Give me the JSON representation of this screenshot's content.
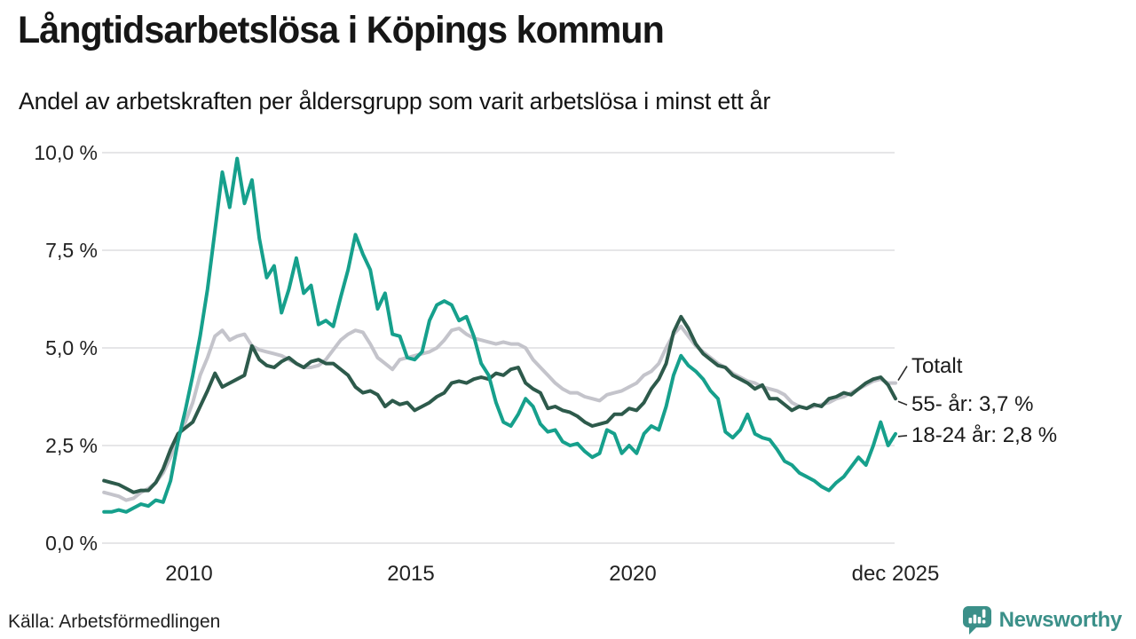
{
  "header": {
    "title": "Långtidsarbetslösa i Köpings kommun",
    "subtitle": "Andel av arbetskraften per åldersgrupp som varit arbetslösa i minst ett år"
  },
  "footer": {
    "source": "Källa: Arbetsförmedlingen",
    "brand": "Newsworthy",
    "brand_color": "#3b9089",
    "brand_icon": "newsworthy-speech-bubble-bar-chart-icon"
  },
  "chart_data": {
    "type": "line",
    "title": "Långtidsarbetslösa i Köpings kommun",
    "subtitle": "Andel av arbetskraften per åldersgrupp som varit arbetslösa i minst ett år",
    "unit": "%",
    "grid": true,
    "legend_position": "right-end-annotations",
    "x_axis": {
      "range_years": [
        2008.08,
        2025.92
      ],
      "ticks": [
        {
          "label": "2010",
          "year": 2010
        },
        {
          "label": "2015",
          "year": 2015
        },
        {
          "label": "2020",
          "year": 2020
        },
        {
          "label": "dec 2025",
          "year": 2025.92
        }
      ]
    },
    "y_axis": {
      "range": [
        0,
        10.3
      ],
      "ticks": [
        {
          "label": "10,0 %",
          "value": 10
        },
        {
          "label": "7,5 %",
          "value": 7.5
        },
        {
          "label": "5,0 %",
          "value": 5
        },
        {
          "label": "2,5 %",
          "value": 2.5
        },
        {
          "label": "0,0 %",
          "value": 0
        }
      ]
    },
    "x_start_year": 2008.083,
    "x_step_years": 0.1667,
    "series": [
      {
        "id": "totalt",
        "name": "Totalt",
        "end_label": "Totalt",
        "end_value": 4.1,
        "color": "#c4c4cb",
        "values": [
          1.3,
          1.25,
          1.2,
          1.1,
          1.15,
          1.3,
          1.4,
          1.55,
          1.8,
          2.2,
          2.7,
          3.1,
          3.6,
          4.3,
          4.75,
          5.3,
          5.45,
          5.2,
          5.3,
          5.35,
          5.05,
          4.95,
          4.9,
          4.85,
          4.8,
          4.7,
          4.6,
          4.5,
          4.5,
          4.55,
          4.7,
          4.95,
          5.2,
          5.35,
          5.45,
          5.4,
          5.1,
          4.75,
          4.6,
          4.45,
          4.7,
          4.75,
          4.8,
          4.85,
          4.9,
          5.0,
          5.2,
          5.45,
          5.5,
          5.35,
          5.25,
          5.2,
          5.15,
          5.1,
          5.15,
          5.1,
          5.1,
          5.0,
          4.7,
          4.5,
          4.3,
          4.1,
          3.95,
          3.85,
          3.85,
          3.75,
          3.7,
          3.65,
          3.8,
          3.85,
          3.9,
          4.0,
          4.1,
          4.3,
          4.4,
          4.6,
          5.0,
          5.35,
          5.55,
          5.3,
          5.05,
          4.9,
          4.75,
          4.6,
          4.5,
          4.35,
          4.25,
          4.15,
          4.1,
          4.0,
          3.95,
          3.9,
          3.8,
          3.6,
          3.5,
          3.45,
          3.5,
          3.55,
          3.6,
          3.7,
          3.75,
          3.85,
          3.95,
          4.05,
          4.15,
          4.2,
          4.1,
          4.1
        ]
      },
      {
        "id": "55-ar",
        "name": "55- år",
        "end_label": "55- år: 3,7 %",
        "end_value": 3.7,
        "color": "#2d5a4b",
        "values": [
          1.6,
          1.55,
          1.5,
          1.4,
          1.3,
          1.35,
          1.35,
          1.55,
          1.9,
          2.4,
          2.8,
          2.95,
          3.1,
          3.5,
          3.9,
          4.35,
          4.0,
          4.1,
          4.2,
          4.3,
          5.05,
          4.7,
          4.55,
          4.5,
          4.65,
          4.75,
          4.6,
          4.5,
          4.65,
          4.7,
          4.6,
          4.6,
          4.45,
          4.3,
          4.0,
          3.85,
          3.9,
          3.8,
          3.5,
          3.65,
          3.55,
          3.6,
          3.4,
          3.5,
          3.6,
          3.75,
          3.85,
          4.1,
          4.15,
          4.1,
          4.2,
          4.25,
          4.2,
          4.35,
          4.3,
          4.45,
          4.5,
          4.1,
          3.95,
          3.85,
          3.45,
          3.5,
          3.4,
          3.35,
          3.25,
          3.1,
          3.0,
          3.05,
          3.1,
          3.3,
          3.3,
          3.45,
          3.4,
          3.6,
          3.95,
          4.2,
          4.6,
          5.4,
          5.8,
          5.5,
          5.1,
          4.85,
          4.7,
          4.55,
          4.5,
          4.3,
          4.2,
          4.1,
          3.95,
          4.05,
          3.7,
          3.7,
          3.55,
          3.4,
          3.5,
          3.45,
          3.55,
          3.5,
          3.7,
          3.75,
          3.85,
          3.8,
          3.95,
          4.1,
          4.2,
          4.25,
          4.05,
          3.7
        ]
      },
      {
        "id": "18-24-ar",
        "name": "18-24 år",
        "end_label": "18-24 år: 2,8 %",
        "end_value": 2.8,
        "color": "#16a08c",
        "values": [
          0.8,
          0.8,
          0.85,
          0.8,
          0.9,
          1.0,
          0.95,
          1.1,
          1.05,
          1.6,
          2.6,
          3.4,
          4.3,
          5.3,
          6.5,
          8.0,
          9.5,
          8.6,
          9.85,
          8.7,
          9.3,
          7.8,
          6.8,
          7.1,
          5.9,
          6.5,
          7.3,
          6.4,
          6.6,
          5.6,
          5.7,
          5.55,
          6.3,
          7.0,
          7.9,
          7.4,
          7.0,
          6.0,
          6.4,
          5.35,
          5.3,
          4.75,
          4.7,
          4.9,
          5.7,
          6.1,
          6.2,
          6.1,
          5.7,
          5.8,
          5.3,
          4.6,
          4.3,
          3.6,
          3.1,
          3.0,
          3.3,
          3.7,
          3.5,
          3.05,
          2.85,
          2.9,
          2.6,
          2.5,
          2.55,
          2.35,
          2.2,
          2.3,
          2.9,
          2.8,
          2.3,
          2.5,
          2.3,
          2.8,
          3.0,
          2.9,
          3.5,
          4.3,
          4.8,
          4.55,
          4.4,
          4.2,
          3.9,
          3.7,
          2.85,
          2.7,
          2.9,
          3.3,
          2.8,
          2.7,
          2.65,
          2.4,
          2.1,
          2.0,
          1.8,
          1.7,
          1.6,
          1.45,
          1.35,
          1.55,
          1.7,
          1.95,
          2.2,
          2.0,
          2.5,
          3.1,
          2.5,
          2.8
        ]
      }
    ],
    "annotations": [
      "Totalt",
      "55- år: 3,7 %",
      "18-24 år: 2,8 %"
    ]
  }
}
